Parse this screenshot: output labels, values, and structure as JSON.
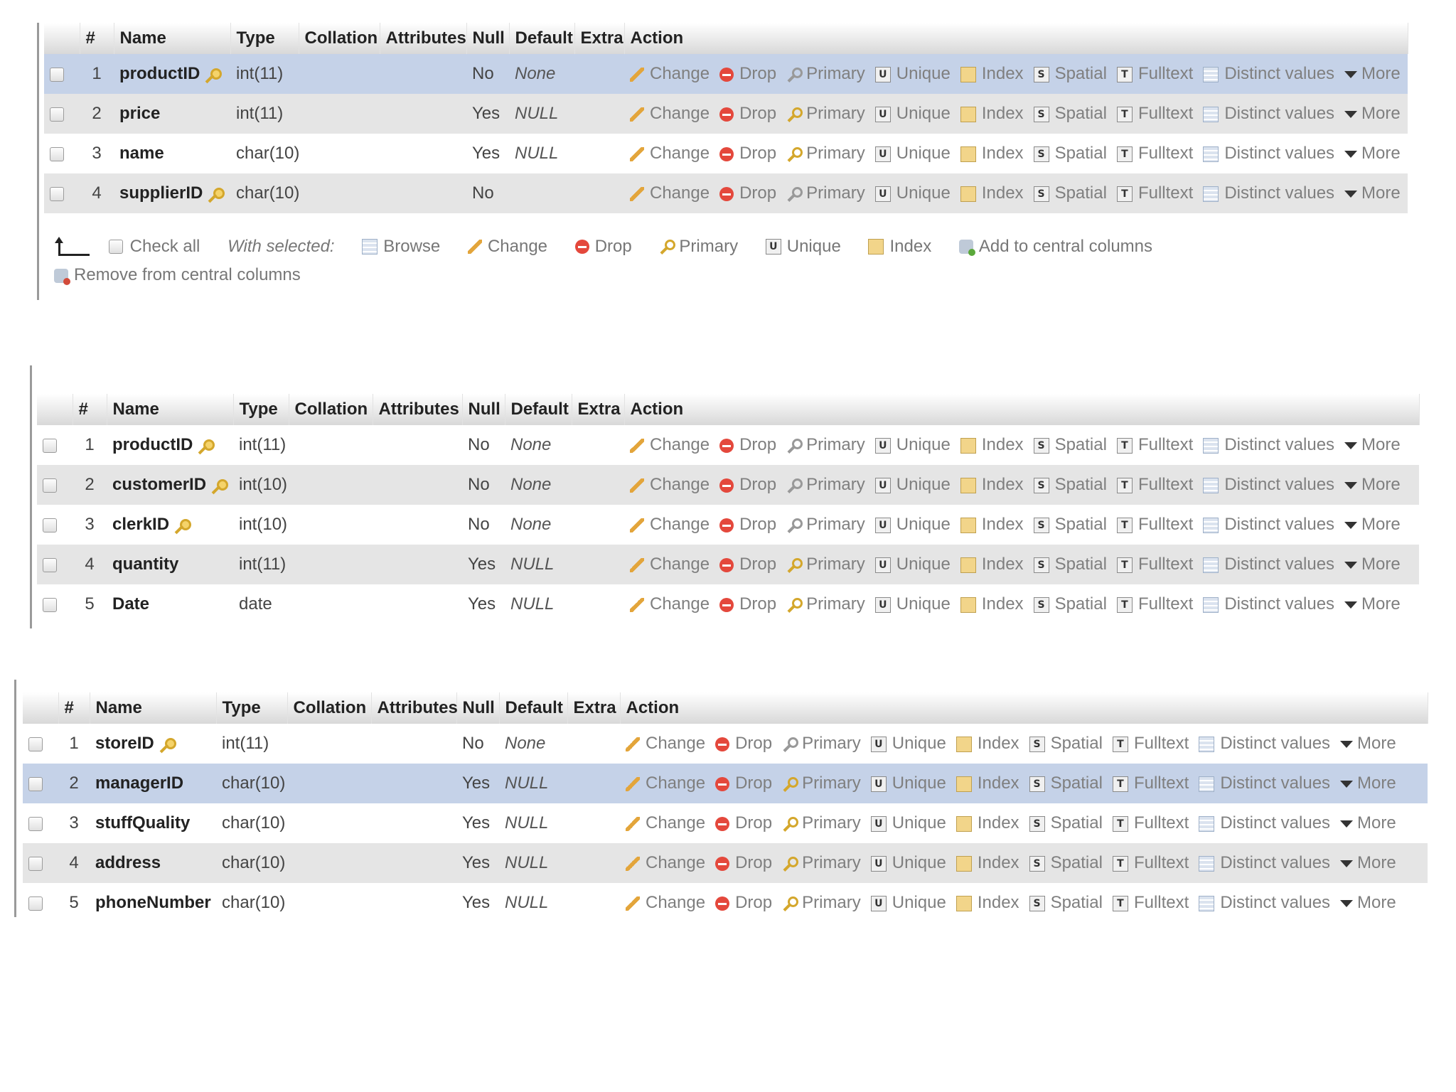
{
  "headers": [
    "#",
    "Name",
    "Type",
    "Collation",
    "Attributes",
    "Null",
    "Default",
    "Extra",
    "Action"
  ],
  "actions": {
    "change": "Change",
    "drop": "Drop",
    "primary": "Primary",
    "unique": "Unique",
    "index": "Index",
    "spatial": "Spatial",
    "fulltext": "Fulltext",
    "distinct": "Distinct values",
    "more": "More"
  },
  "footer": {
    "check_all": "Check all",
    "with_selected": "With selected:",
    "browse": "Browse",
    "change": "Change",
    "drop": "Drop",
    "primary": "Primary",
    "unique": "Unique",
    "index": "Index",
    "add_central": "Add to central columns",
    "remove_central": "Remove from central columns"
  },
  "tables": [
    {
      "rows": [
        {
          "num": "1",
          "name": "productID",
          "key": true,
          "type": "int(11)",
          "null": "No",
          "default": "None",
          "highlight": true
        },
        {
          "num": "2",
          "name": "price",
          "key": false,
          "type": "int(11)",
          "null": "Yes",
          "default": "NULL",
          "highlight": false
        },
        {
          "num": "3",
          "name": "name",
          "key": false,
          "type": "char(10)",
          "null": "Yes",
          "default": "NULL",
          "highlight": false
        },
        {
          "num": "4",
          "name": "supplierID",
          "key": true,
          "type": "char(10)",
          "null": "No",
          "default": "",
          "highlight": false
        }
      ]
    },
    {
      "rows": [
        {
          "num": "1",
          "name": "productID",
          "key": true,
          "type": "int(11)",
          "null": "No",
          "default": "None",
          "highlight": false
        },
        {
          "num": "2",
          "name": "customerID",
          "key": true,
          "type": "int(10)",
          "null": "No",
          "default": "None",
          "highlight": false
        },
        {
          "num": "3",
          "name": "clerkID",
          "key": true,
          "type": "int(10)",
          "null": "No",
          "default": "None",
          "highlight": false
        },
        {
          "num": "4",
          "name": "quantity",
          "key": false,
          "type": "int(11)",
          "null": "Yes",
          "default": "NULL",
          "highlight": false
        },
        {
          "num": "5",
          "name": "Date",
          "key": false,
          "type": "date",
          "null": "Yes",
          "default": "NULL",
          "highlight": false
        }
      ]
    },
    {
      "rows": [
        {
          "num": "1",
          "name": "storeID",
          "key": true,
          "type": "int(11)",
          "null": "No",
          "default": "None",
          "highlight": false
        },
        {
          "num": "2",
          "name": "managerID",
          "key": false,
          "type": "char(10)",
          "null": "Yes",
          "default": "NULL",
          "highlight": true
        },
        {
          "num": "3",
          "name": "stuffQuality",
          "key": false,
          "type": "char(10)",
          "null": "Yes",
          "default": "NULL",
          "highlight": false
        },
        {
          "num": "4",
          "name": "address",
          "key": false,
          "type": "char(10)",
          "null": "Yes",
          "default": "NULL",
          "highlight": false
        },
        {
          "num": "5",
          "name": "phoneNumber",
          "key": false,
          "type": "char(10)",
          "null": "Yes",
          "default": "NULL",
          "highlight": false
        }
      ]
    }
  ]
}
